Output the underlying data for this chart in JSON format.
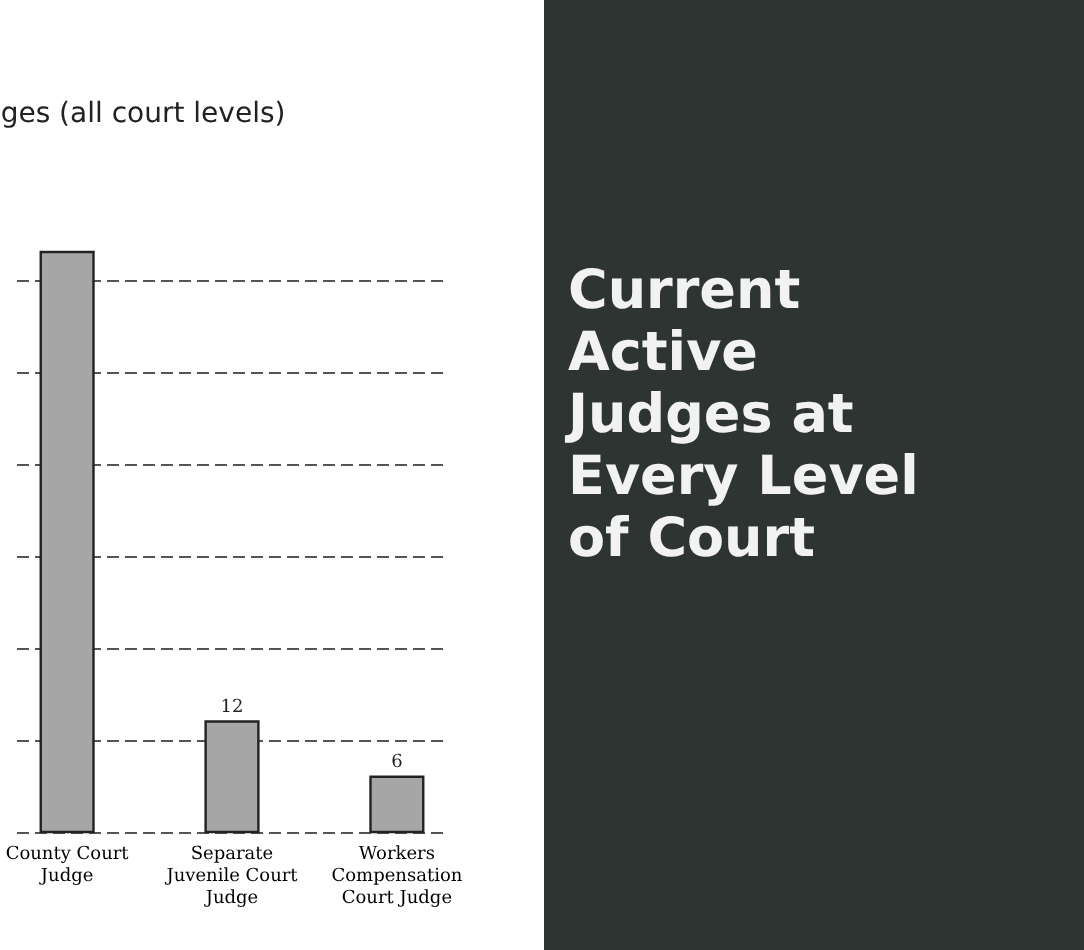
{
  "chart_data": [
    {
      "type": "bar",
      "title": "ges (all court levels)",
      "categories": [
        "County Court Judge",
        "Separate Juvenile Court Judge",
        "Workers Compensation Court Judge"
      ],
      "values": [
        63,
        12,
        6
      ],
      "value_labels": [
        null,
        "12",
        "6"
      ],
      "tick_labels": "x",
      "color": "#a6a6a6",
      "grid": "y"
    },
    {
      "type": "other",
      "title": "Current Active Judges at Every Level of Court"
    }
  ]
}
